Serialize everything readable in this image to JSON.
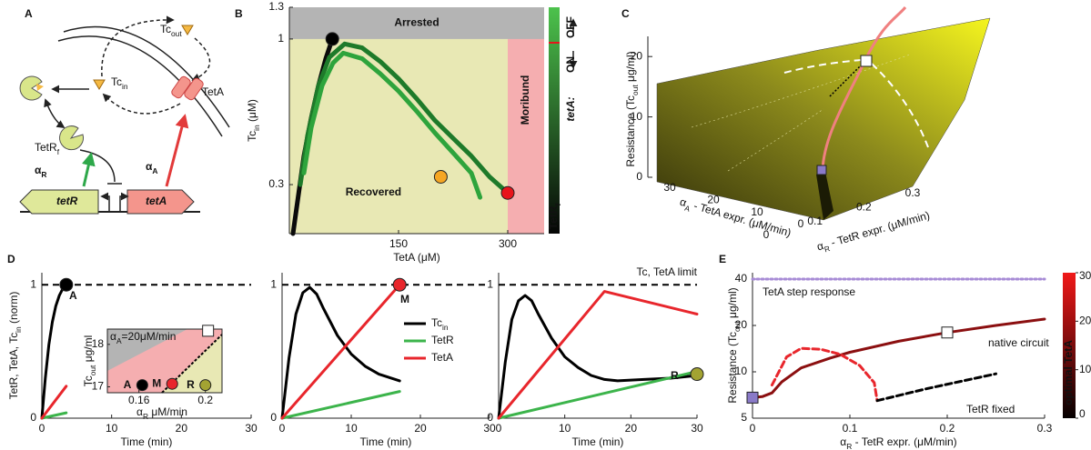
{
  "panel_labels": [
    "A",
    "B",
    "C",
    "D",
    "E"
  ],
  "diagram": {
    "tc_out": [
      {
        "text": "Tc"
      },
      {
        "sub": "out"
      }
    ],
    "tc_in": [
      {
        "text": "Tc"
      },
      {
        "sub": "in"
      }
    ],
    "teta_protein": "TetA",
    "tetr_protein": [
      {
        "text": "TetR"
      },
      {
        "sub": "f"
      }
    ],
    "alpha_r": [
      {
        "text": "α"
      },
      {
        "sub": "R"
      }
    ],
    "alpha_a": [
      {
        "text": "α"
      },
      {
        "sub": "A"
      }
    ],
    "tetr_gene": "tetR",
    "teta_gene": "tetA"
  },
  "chart_data": [
    {
      "type": "line",
      "xlabel": "TetA (μM)",
      "ylabel": [
        {
          "text": "Tc"
        },
        {
          "sub": "in"
        },
        {
          "text": " (μM)"
        }
      ],
      "xlim": [
        0,
        350
      ],
      "xticks": [
        150,
        300
      ],
      "ylim": [
        0.2,
        1.3
      ],
      "yticks": [
        0.3,
        1,
        1.3
      ],
      "y_scale": "log",
      "regions": [
        {
          "label": "Arrested",
          "color": "#b4b4b4",
          "y_from": 1
        },
        {
          "label": "Moribund",
          "color": "#f5aeb0",
          "x_from": 300
        },
        {
          "label": "Recovered",
          "color": "#e8e8b4"
        }
      ],
      "series": [
        {
          "color": "#0a0a0a",
          "x": [
            5,
            12,
            20,
            30,
            40,
            50,
            59
          ],
          "y": [
            0.2,
            0.27,
            0.38,
            0.52,
            0.68,
            0.85,
            1.0
          ]
        },
        {
          "color": "#1e7a2a",
          "x": [
            15,
            25,
            40,
            55,
            76,
            100,
            125,
            150,
            175,
            200,
            225,
            250,
            275,
            300
          ],
          "y": [
            0.3,
            0.45,
            0.68,
            0.86,
            0.96,
            0.93,
            0.83,
            0.72,
            0.61,
            0.51,
            0.44,
            0.38,
            0.32,
            0.28
          ]
        },
        {
          "color": "#2ea43c",
          "x": [
            20,
            30,
            45,
            60,
            74,
            100,
            125,
            150,
            175,
            200,
            225,
            250,
            262
          ],
          "y": [
            0.33,
            0.48,
            0.68,
            0.82,
            0.89,
            0.85,
            0.75,
            0.65,
            0.55,
            0.46,
            0.39,
            0.33,
            0.27
          ]
        }
      ],
      "markers": [
        {
          "x": 59,
          "y": 1.0,
          "color": "#000000"
        },
        {
          "x": 208,
          "y": 0.32,
          "color": "#f5a623"
        },
        {
          "x": 300,
          "y": 0.28,
          "color": "#e8141b"
        }
      ],
      "colorbar": {
        "title": "tetA:",
        "upper": "OFF",
        "lower": "ON",
        "bottom": [
          {
            "text": "TetR"
          },
          {
            "sub": "f"
          }
        ]
      }
    },
    {
      "type": "surface",
      "zlabel": [
        {
          "text": "Resistance (Tc"
        },
        {
          "sub": "out"
        },
        {
          "text": " μg/ml)"
        }
      ],
      "zlim": [
        0,
        25
      ],
      "zticks": [
        0,
        10,
        20
      ],
      "xlabel": [
        {
          "text": "α"
        },
        {
          "sub": "A"
        },
        {
          "text": " - TetA expr. (μM/min)"
        }
      ],
      "xlim": [
        0,
        30
      ],
      "xticks": [
        30,
        20,
        10,
        0
      ],
      "ylabel": [
        {
          "text": "α"
        },
        {
          "sub": "R"
        },
        {
          "text": " - TetR expr. (μM/min)"
        }
      ],
      "ylim": [
        0,
        0.3
      ],
      "yticks": [
        0,
        0.1,
        0.2,
        0.3
      ]
    },
    {
      "type": "line",
      "label": "A",
      "xlabel": "Time (min)",
      "ylabel": [
        {
          "text": "TetR, TetA, Tc"
        },
        {
          "sub": "in"
        },
        {
          "text": " (norm)"
        }
      ],
      "xlim": [
        0,
        30
      ],
      "xticks": [
        0,
        10,
        20,
        30
      ],
      "ylim": [
        0,
        1.09
      ],
      "yticks": [
        0,
        1
      ],
      "limit_line": 1,
      "series": [
        {
          "color": "#000000",
          "x": [
            0,
            0.5,
            1,
            1.5,
            2,
            2.5,
            3,
            3.5
          ],
          "y": [
            0,
            0.3,
            0.55,
            0.72,
            0.84,
            0.92,
            0.97,
            1.0
          ]
        },
        {
          "color": "#3cb44b",
          "x": [
            0,
            3.5
          ],
          "y": [
            0,
            0.04
          ]
        },
        {
          "color": "#e8262c",
          "x": [
            0,
            3.5
          ],
          "y": [
            0,
            0.24
          ]
        }
      ],
      "markers": [
        {
          "x": 3.5,
          "y": 1,
          "color": "#000000"
        }
      ],
      "inset": {
        "xlim": [
          0.141,
          0.21
        ],
        "ylim": [
          16.86,
          18.36
        ],
        "xticks": [
          0.16,
          0.2
        ],
        "yticks": [
          17,
          18
        ],
        "xlabel": [
          {
            "text": "α"
          },
          {
            "sub": "R"
          },
          {
            "text": " μM/min"
          }
        ],
        "ylabel": [
          {
            "text": "Tc"
          },
          {
            "sub": "out"
          },
          {
            "text": " μg/ml"
          }
        ],
        "annotation": [
          {
            "text": "α"
          },
          {
            "sub": "A"
          },
          {
            "text": "=20μM/min"
          }
        ],
        "points": [
          {
            "label": "A",
            "x": 0.162,
            "y": 17.04,
            "color": "#000000"
          },
          {
            "label": "M",
            "x": 0.18,
            "y": 17.07,
            "color": "#e8262c"
          },
          {
            "label": "R",
            "x": 0.2,
            "y": 17.04,
            "color": "#a3a332"
          },
          {
            "x": 0.2016,
            "y": 18.32,
            "color": "#ffffff",
            "shape": "square"
          }
        ]
      }
    },
    {
      "type": "line",
      "label": "M",
      "xlabel": "Time (min)",
      "xlim": [
        0,
        30
      ],
      "xticks": [
        0,
        10,
        20,
        30
      ],
      "ylim": [
        0,
        1.09
      ],
      "yticks": [
        0,
        1
      ],
      "limit_line": 1,
      "series": [
        {
          "name": [
            {
              "text": "Tc"
            },
            {
              "sub": "in"
            }
          ],
          "color": "#000000",
          "x": [
            0,
            1,
            2,
            3,
            4,
            5,
            6,
            8,
            10,
            12,
            14,
            17
          ],
          "y": [
            0,
            0.45,
            0.78,
            0.94,
            0.98,
            0.93,
            0.82,
            0.62,
            0.48,
            0.39,
            0.33,
            0.28
          ]
        },
        {
          "name": "TetR",
          "color": "#3cb44b",
          "x": [
            0,
            17
          ],
          "y": [
            0,
            0.2
          ]
        },
        {
          "name": "TetA",
          "color": "#e8262c",
          "x": [
            0,
            17
          ],
          "y": [
            0,
            1
          ]
        }
      ],
      "markers": [
        {
          "x": 17,
          "y": 1,
          "color": "#e8262c"
        }
      ]
    },
    {
      "type": "line",
      "label": "R",
      "annotation": "Tc, TetA limit",
      "xlabel": "Time (min)",
      "xlim": [
        0,
        30
      ],
      "xticks": [
        0,
        10,
        20,
        30
      ],
      "ylim": [
        0,
        1.09
      ],
      "yticks": [
        0,
        1
      ],
      "limit_line": 1,
      "series": [
        {
          "color": "#000000",
          "x": [
            0,
            1,
            2,
            3,
            4,
            5,
            6,
            8,
            10,
            12,
            14,
            16,
            18,
            22,
            26,
            30
          ],
          "y": [
            0,
            0.42,
            0.74,
            0.88,
            0.92,
            0.88,
            0.78,
            0.6,
            0.46,
            0.38,
            0.32,
            0.29,
            0.28,
            0.29,
            0.3,
            0.32
          ]
        },
        {
          "color": "#3cb44b",
          "x": [
            0,
            30
          ],
          "y": [
            0,
            0.35
          ]
        },
        {
          "color": "#e8262c",
          "x": [
            0,
            16,
            30
          ],
          "y": [
            0,
            0.95,
            0.78
          ]
        }
      ],
      "markers": [
        {
          "x": 30,
          "y": 0.33,
          "color": "#a3a332"
        }
      ]
    },
    {
      "type": "line",
      "xlabel": [
        {
          "text": "α"
        },
        {
          "sub": "R"
        },
        {
          "text": " - TetR expr. (μM/min)"
        }
      ],
      "ylabel": [
        {
          "text": "Resistance (Tc"
        },
        {
          "sub": "out"
        },
        {
          "text": " μg/ml)"
        }
      ],
      "xlim": [
        0,
        0.3
      ],
      "xticks": [
        0,
        0.1,
        0.2,
        0.3
      ],
      "ylim": [
        5,
        44
      ],
      "yticks": [
        5,
        10,
        20,
        40
      ],
      "y_scale": "log",
      "series": [
        {
          "name": "TetA step response",
          "color": "#a78bd6",
          "dash": "2,3",
          "x": [
            0,
            0.3
          ],
          "y": [
            40,
            40
          ]
        },
        {
          "name": "native circuit",
          "color": "#8b0f10",
          "x": [
            0,
            0.01,
            0.02,
            0.03,
            0.05,
            0.08,
            0.1,
            0.15,
            0.2,
            0.25,
            0.3
          ],
          "y": [
            6.8,
            6.9,
            7.3,
            8.6,
            10.6,
            12.3,
            13.4,
            15.8,
            18,
            20,
            22
          ]
        },
        {
          "color": "#e8262c",
          "dash": "7,4",
          "x": [
            0.02,
            0.035,
            0.05,
            0.07,
            0.09,
            0.11,
            0.125,
            0.128
          ],
          "y": [
            8.2,
            12.5,
            14.2,
            14,
            13,
            11,
            8.5,
            6.5
          ]
        },
        {
          "name": "TetR fixed",
          "color": "#000000",
          "dash": "7,4",
          "x": [
            0.128,
            0.18,
            0.25
          ],
          "y": [
            6.5,
            7.8,
            9.7
          ]
        }
      ],
      "markers": [
        {
          "x": 0,
          "y": 6.8,
          "color": "#8a7ac8",
          "shape": "square"
        },
        {
          "x": 0.2,
          "y": 18,
          "color": "#ffffff",
          "shape": "square"
        }
      ],
      "colorbar": {
        "label": "optimal TetA",
        "lim": [
          0,
          30
        ],
        "ticks": [
          0,
          10,
          20,
          30
        ]
      }
    }
  ]
}
